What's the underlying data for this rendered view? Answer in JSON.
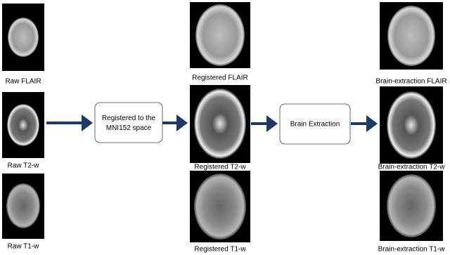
{
  "raw": [
    "Raw FLAIR",
    "Raw T2-w",
    "Raw T1-w"
  ],
  "steps": [
    "Registered to the MNI152 space",
    "Brain Extraction"
  ],
  "registered": [
    "Registered FLAIR",
    "Registered T2-w",
    "Registered T1-w"
  ],
  "extracted": [
    "Brain-extraction FLAIR",
    "Brain-extraction T2-w",
    "Brain-extraction T1-w"
  ]
}
